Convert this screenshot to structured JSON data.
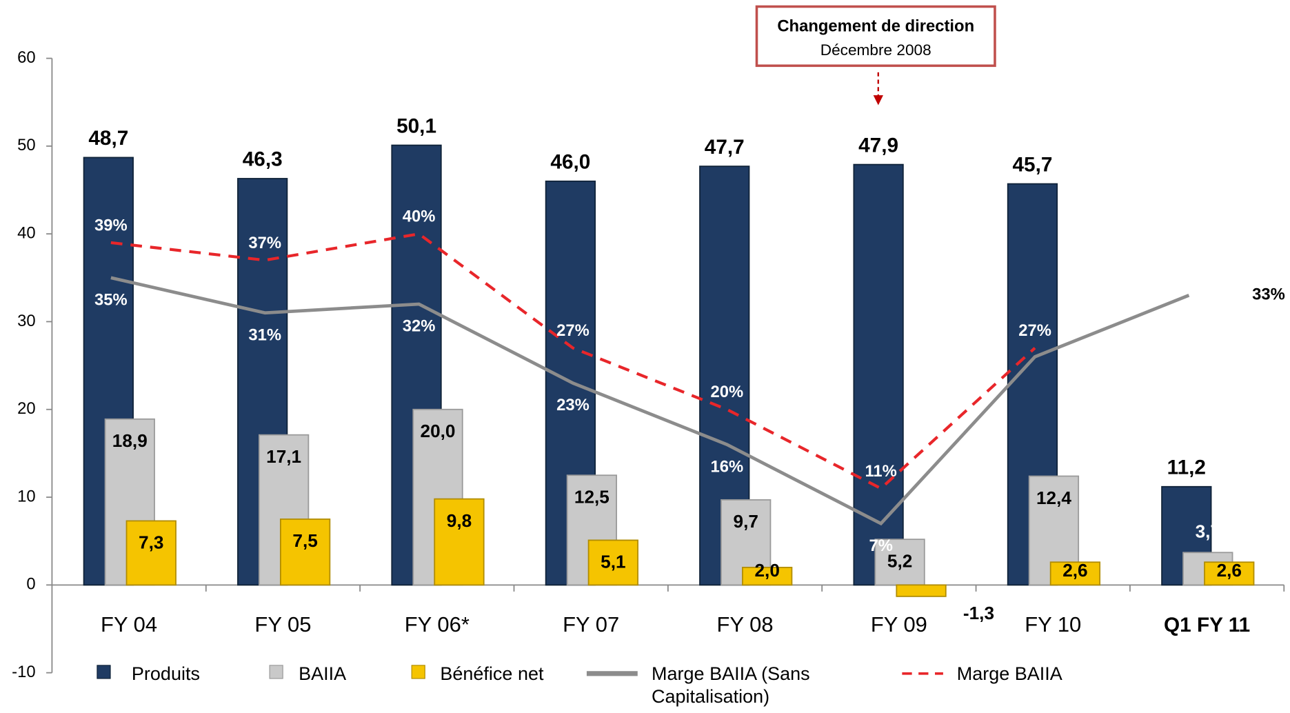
{
  "chart_data": {
    "type": "bar",
    "categories": [
      "FY 04",
      "FY 05",
      "FY 06*",
      "FY 07",
      "FY 08",
      "FY 09",
      "FY 10",
      "Q1 FY 11"
    ],
    "ylim": [
      -10,
      60
    ],
    "yticks": [
      -10,
      0,
      10,
      20,
      30,
      40,
      50,
      60
    ],
    "annotation": {
      "title": "Changement de direction",
      "subtitle": "Décembre 2008",
      "category_index": 5
    },
    "series": [
      {
        "name": "Produits",
        "type": "bar",
        "color": "#1f3b63",
        "values": [
          48.7,
          46.3,
          50.1,
          46.0,
          47.7,
          47.9,
          45.7,
          11.2
        ],
        "value_labels": [
          "48,7",
          "46,3",
          "50,1",
          "46,0",
          "47,7",
          "47,9",
          "45,7",
          "11,2"
        ]
      },
      {
        "name": "BAIIA",
        "type": "bar",
        "color": "#c9c9c9",
        "values": [
          18.9,
          17.1,
          20.0,
          12.5,
          9.7,
          5.2,
          12.4,
          3.7
        ],
        "value_labels": [
          "18,9",
          "17,1",
          "20,0",
          "12,5",
          "9,7",
          "5,2",
          "12,4",
          "3,7"
        ]
      },
      {
        "name": "Bénéfice net",
        "type": "bar",
        "color": "#f5c400",
        "values": [
          7.3,
          7.5,
          9.8,
          5.1,
          2.0,
          -1.3,
          2.6,
          2.6
        ],
        "value_labels": [
          "7,3",
          "7,5",
          "9,8",
          "5,1",
          "2,0",
          "-1,3",
          "2,6",
          "2,6"
        ]
      },
      {
        "name": "Marge BAIIA (Sans Capitalisation)",
        "type": "line",
        "color": "#8c8c8c",
        "values": [
          35,
          31,
          32,
          23,
          16,
          7,
          26,
          33
        ],
        "value_labels": [
          "35%",
          "31%",
          "32%",
          "23%",
          "16%",
          "7%",
          null,
          "33%"
        ]
      },
      {
        "name": "Marge BAIIA",
        "type": "line",
        "dashed": true,
        "color": "#e8262a",
        "values": [
          39,
          37,
          40,
          27,
          20,
          11,
          27,
          null
        ],
        "value_labels": [
          "39%",
          "37%",
          "40%",
          "27%",
          "20%",
          "11%",
          "27%",
          null
        ]
      }
    ]
  }
}
